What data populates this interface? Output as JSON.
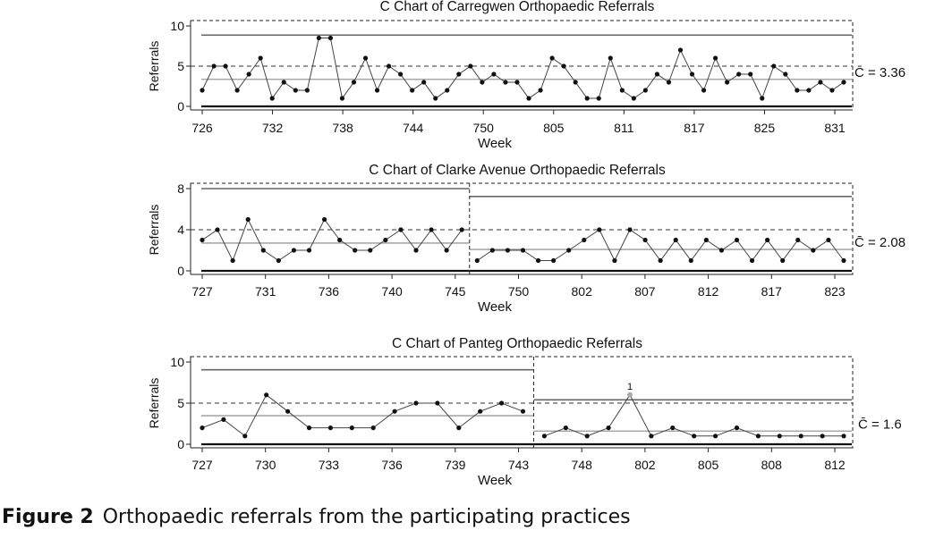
{
  "figure": {
    "label": "Figure 2",
    "caption": "Orthopaedic referrals from the participating practices"
  },
  "chart_data": [
    {
      "type": "line",
      "title": "C Chart of Carregwen Orthopaedic Referrals",
      "xlabel": "Week",
      "ylabel": "Referrals",
      "ylim": [
        0,
        10
      ],
      "yticks": [
        0,
        5,
        10
      ],
      "xticks": [
        "726",
        "732",
        "738",
        "744",
        "750",
        "805",
        "811",
        "817",
        "825",
        "831"
      ],
      "center_label": "C̄ = 3.36",
      "phases": [
        {
          "center": 3.36,
          "ucl": 8.86,
          "lcl": 0
        }
      ],
      "series": [
        {
          "values": [
            2,
            5,
            5,
            2,
            4,
            6,
            1,
            3,
            2,
            2,
            8.5,
            8.5,
            1,
            3,
            6,
            2,
            5,
            4,
            2,
            3,
            1,
            2,
            4,
            5,
            3,
            4,
            3,
            3,
            1,
            2,
            6,
            5,
            3,
            1,
            1,
            6,
            2,
            1,
            2,
            4,
            3,
            7,
            4,
            2,
            6,
            3,
            4,
            4,
            1,
            5,
            4,
            2,
            2,
            3,
            2,
            3
          ]
        }
      ]
    },
    {
      "type": "line",
      "title": "C Chart of Clarke Avenue Orthopaedic Referrals",
      "xlabel": "Week",
      "ylabel": "Referrals",
      "ylim": [
        0,
        8
      ],
      "yticks": [
        0,
        4,
        8
      ],
      "xticks": [
        "727",
        "731",
        "736",
        "740",
        "745",
        "750",
        "802",
        "807",
        "812",
        "817",
        "823"
      ],
      "center_label": "C̄ = 2.08",
      "phases": [
        {
          "center": 2.7,
          "ucl": 8.0,
          "lcl": 0
        },
        {
          "center": 2.08,
          "ucl": 7.23,
          "lcl": 0
        }
      ],
      "series": [
        {
          "values": [
            3,
            4,
            1,
            5,
            2,
            1,
            2,
            2,
            5,
            3,
            2,
            2,
            3,
            4,
            2,
            4,
            2,
            4
          ]
        },
        {
          "values": [
            1,
            2,
            2,
            2,
            1,
            1,
            2,
            3,
            4,
            1,
            4,
            3,
            1,
            3,
            1,
            3,
            2,
            3,
            1,
            3,
            1,
            3,
            2,
            3,
            1
          ]
        }
      ]
    },
    {
      "type": "line",
      "title": "C Chart of Panteg Orthopaedic Referrals",
      "xlabel": "Week",
      "ylabel": "Referrals",
      "ylim": [
        0,
        10
      ],
      "yticks": [
        0,
        5,
        10
      ],
      "xticks": [
        "727",
        "730",
        "733",
        "736",
        "739",
        "743",
        "748",
        "802",
        "805",
        "808",
        "812"
      ],
      "center_label": "C̄ = 1.6",
      "annotation": "1",
      "phases": [
        {
          "center": 3.47,
          "ucl": 9.06,
          "lcl": 0
        },
        {
          "center": 1.6,
          "ucl": 5.4,
          "lcl": 0
        }
      ],
      "series": [
        {
          "values": [
            2,
            3,
            1,
            6,
            4,
            2,
            2,
            2,
            2,
            4,
            5,
            5,
            2,
            4,
            5,
            4
          ]
        },
        {
          "values": [
            1,
            2,
            1,
            2,
            6,
            1,
            2,
            1,
            1,
            2,
            1,
            1,
            1,
            1,
            1
          ]
        }
      ]
    }
  ]
}
